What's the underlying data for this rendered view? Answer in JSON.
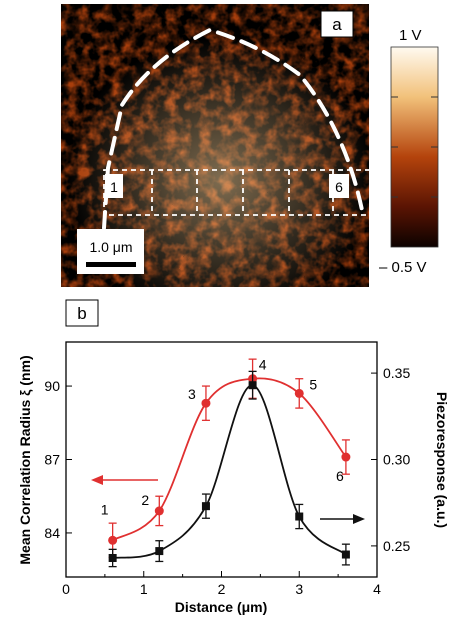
{
  "panel_a": {
    "label": "a",
    "scale_bar": "1.0 μm",
    "colorbar_max": "1 V",
    "colorbar_min": "– 0.5 V",
    "region_start": "1",
    "region_end": "6",
    "colors": {
      "dark": "#2a0800",
      "mid": "#b4430c",
      "light": "#fff2d4"
    }
  },
  "panel_b": {
    "label": "b"
  },
  "chart_data": {
    "type": "line",
    "xlabel": "Distance (μm)",
    "ylabel_left": "Mean Correlation Radius ξ (nm)",
    "ylabel_right": "Piezoresponse (a.u.)",
    "xlim": [
      0,
      4
    ],
    "ylim_left": [
      82.2,
      91.8
    ],
    "ylim_right": [
      0.232,
      0.368
    ],
    "x_ticks": [
      "0",
      "1",
      "2",
      "3",
      "4"
    ],
    "y_ticks_left": [
      "84",
      "87",
      "90"
    ],
    "y_ticks_right": [
      "0.25",
      "0.30",
      "0.35"
    ],
    "series": [
      {
        "axis": "left",
        "color": "#e03030",
        "marker": "circle",
        "x": [
          0.6,
          1.2,
          1.8,
          2.4,
          3.0,
          3.6
        ],
        "values": [
          83.7,
          84.9,
          89.3,
          90.3,
          89.7,
          87.1
        ],
        "errors": [
          0.7,
          0.6,
          0.7,
          0.8,
          0.6,
          0.7
        ],
        "point_labels": [
          "1",
          "2",
          "3",
          "4",
          "5",
          "6"
        ]
      },
      {
        "axis": "right",
        "color": "#111111",
        "marker": "square",
        "x": [
          0.6,
          1.2,
          1.8,
          2.4,
          3.0,
          3.6
        ],
        "values": [
          0.243,
          0.247,
          0.273,
          0.343,
          0.267,
          0.245
        ],
        "errors": [
          0.005,
          0.006,
          0.007,
          0.008,
          0.007,
          0.006
        ]
      }
    ]
  }
}
